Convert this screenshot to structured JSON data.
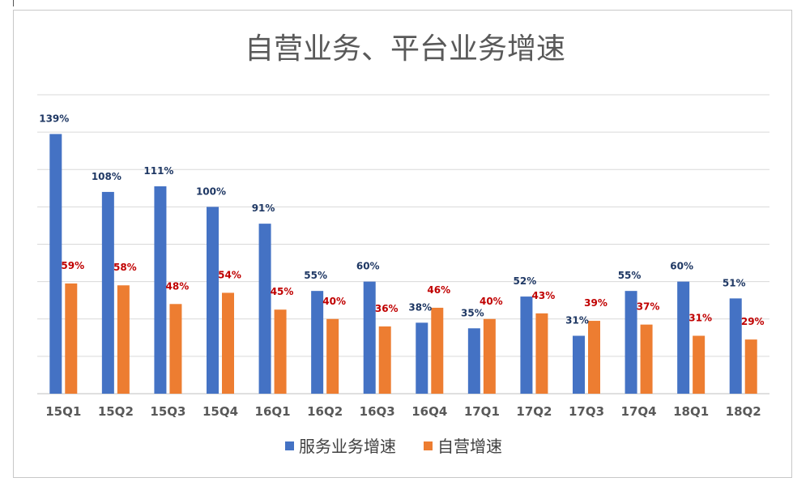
{
  "chart_data": {
    "type": "bar",
    "title": "自营业务、平台业务增速",
    "xlabel": "",
    "ylabel": "",
    "ylim": [
      0,
      160
    ],
    "grid": true,
    "legend_position": "bottom",
    "categories": [
      "15Q1",
      "15Q2",
      "15Q3",
      "15Q4",
      "16Q1",
      "16Q2",
      "16Q3",
      "16Q4",
      "17Q1",
      "17Q2",
      "17Q3",
      "17Q4",
      "18Q1",
      "18Q2"
    ],
    "series": [
      {
        "name": "服务业务增速",
        "color": "#4472c4",
        "label_color": "#1f3864",
        "values": [
          139,
          108,
          111,
          100,
          91,
          55,
          60,
          38,
          35,
          52,
          31,
          55,
          60,
          51
        ],
        "labels": [
          "139%",
          "108%",
          "111%",
          "100%",
          "91%",
          "55%",
          "60%",
          "38%",
          "35%",
          "52%",
          "31%",
          "55%",
          "60%",
          "51%"
        ]
      },
      {
        "name": "自营增速",
        "color": "#ed7d31",
        "label_color": "#c00000",
        "values": [
          59,
          58,
          48,
          54,
          45,
          40,
          36,
          46,
          40,
          43,
          39,
          37,
          31,
          29
        ],
        "labels": [
          "59%",
          "58%",
          "48%",
          "54%",
          "45%",
          "40%",
          "36%",
          "46%",
          "40%",
          "43%",
          "39%",
          "37%",
          "31%",
          "29%"
        ]
      }
    ]
  }
}
